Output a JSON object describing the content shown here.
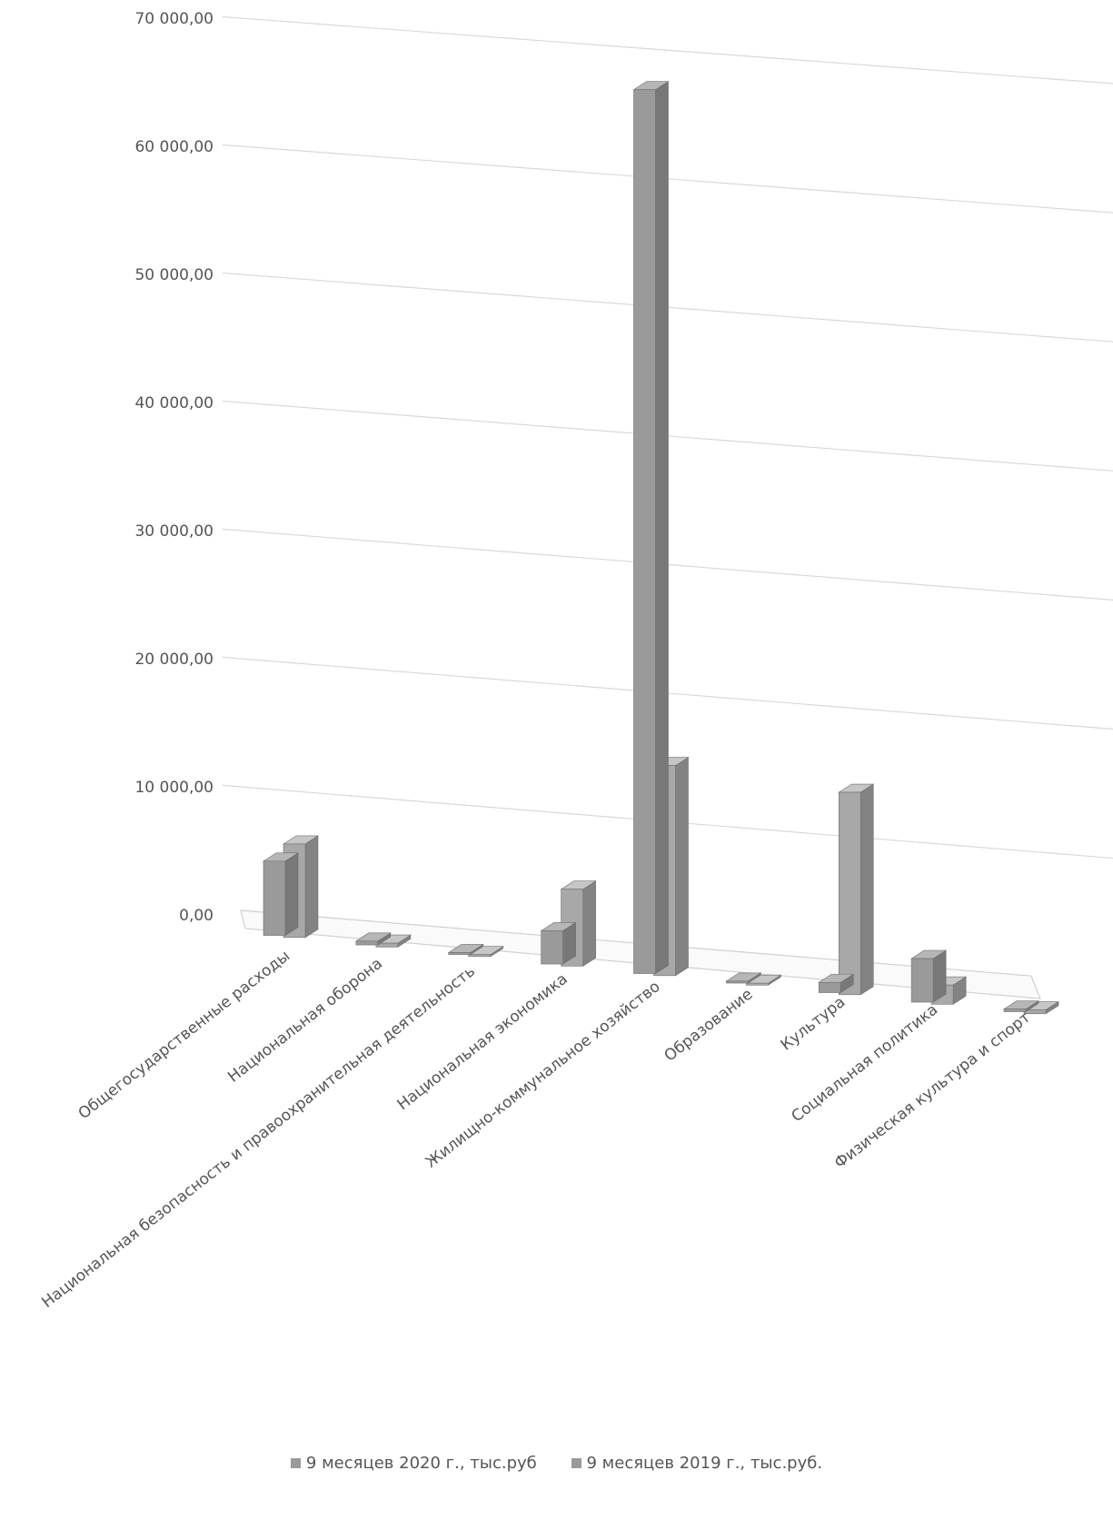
{
  "chart_data": {
    "type": "bar",
    "title": "",
    "xlabel": "",
    "ylabel": "",
    "ylim": [
      0,
      70000
    ],
    "yticks": [
      "0,00",
      "10 000,00",
      "20 000,00",
      "30 000,00",
      "40 000,00",
      "50 000,00",
      "60 000,00",
      "70 000,00"
    ],
    "categories": [
      "Общегосударственные расходы",
      "Национальная оборона",
      "Национальная безопасность и правоохранительная деятельность",
      "Национальная экономика",
      "Жилищно-коммунальное хозяйство",
      "Образование",
      "Культура",
      "Социальная политика",
      "Физическая культура и спорт"
    ],
    "series": [
      {
        "name": "9 месяцев 2020 г., тыс.руб",
        "color": "#9a9a9a",
        "values": [
          5800,
          300,
          150,
          2600,
          69000,
          150,
          800,
          3400,
          200
        ]
      },
      {
        "name": "9 месяцев 2019 г., тыс.руб.",
        "color": "#a8a8a8",
        "values": [
          7300,
          300,
          150,
          6000,
          16400,
          150,
          15800,
          1500,
          300
        ]
      }
    ],
    "grid": true,
    "legend_position": "bottom",
    "style": "3d-column"
  }
}
